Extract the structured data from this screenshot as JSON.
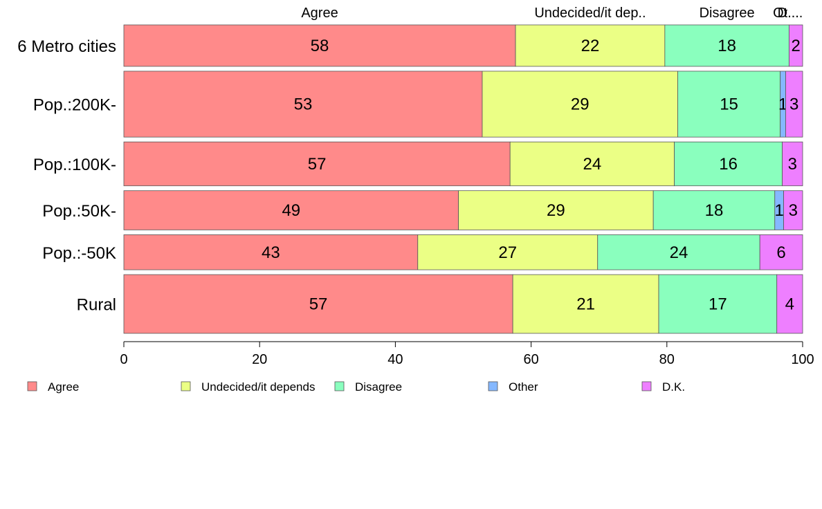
{
  "chart_data": {
    "type": "bar",
    "orientation": "horizontal",
    "stacked": true,
    "xlim": [
      0,
      100
    ],
    "xticks": [
      "0",
      "20",
      "40",
      "60",
      "80",
      "100"
    ],
    "grid": false,
    "legend_position": "bottom",
    "top_labels": [
      "Agree",
      "Undecided/it dep..",
      "Disagree",
      "Ot...",
      "D...."
    ],
    "categories": [
      "6 Metro cities",
      "Pop.:200K-",
      "Pop.:100K-",
      "Pop.:50K-",
      "Pop.:-50K",
      "Rural"
    ],
    "row_weights": [
      0.168,
      0.267,
      0.178,
      0.159,
      0.142,
      0.238
    ],
    "series": [
      {
        "name": "Agree",
        "color": "#FF8A8A",
        "values": [
          57.7,
          52.8,
          56.9,
          49.3,
          43.3,
          57.3
        ]
      },
      {
        "name": "Undecided/it depends",
        "color": "#EBFF85",
        "values": [
          22.0,
          28.8,
          24.2,
          28.7,
          26.5,
          21.5
        ]
      },
      {
        "name": "Disagree",
        "color": "#8AFFBE",
        "values": [
          18.3,
          15.1,
          15.9,
          17.9,
          23.9,
          17.4
        ]
      },
      {
        "name": "Other",
        "color": "#85B8FF",
        "values": [
          0,
          0.8,
          0,
          1.3,
          0,
          0
        ]
      },
      {
        "name": "D.K.",
        "color": "#EE7FFF",
        "values": [
          2.0,
          2.5,
          3.0,
          2.8,
          6.3,
          3.8
        ]
      }
    ],
    "data_labels": [
      [
        "58",
        "22",
        "18",
        "",
        "2"
      ],
      [
        "53",
        "29",
        "15",
        "1",
        "3"
      ],
      [
        "57",
        "24",
        "16",
        "",
        "3"
      ],
      [
        "49",
        "29",
        "18",
        "1",
        "3"
      ],
      [
        "43",
        "27",
        "24",
        "",
        "6"
      ],
      [
        "57",
        "21",
        "17",
        "",
        "4"
      ]
    ]
  }
}
